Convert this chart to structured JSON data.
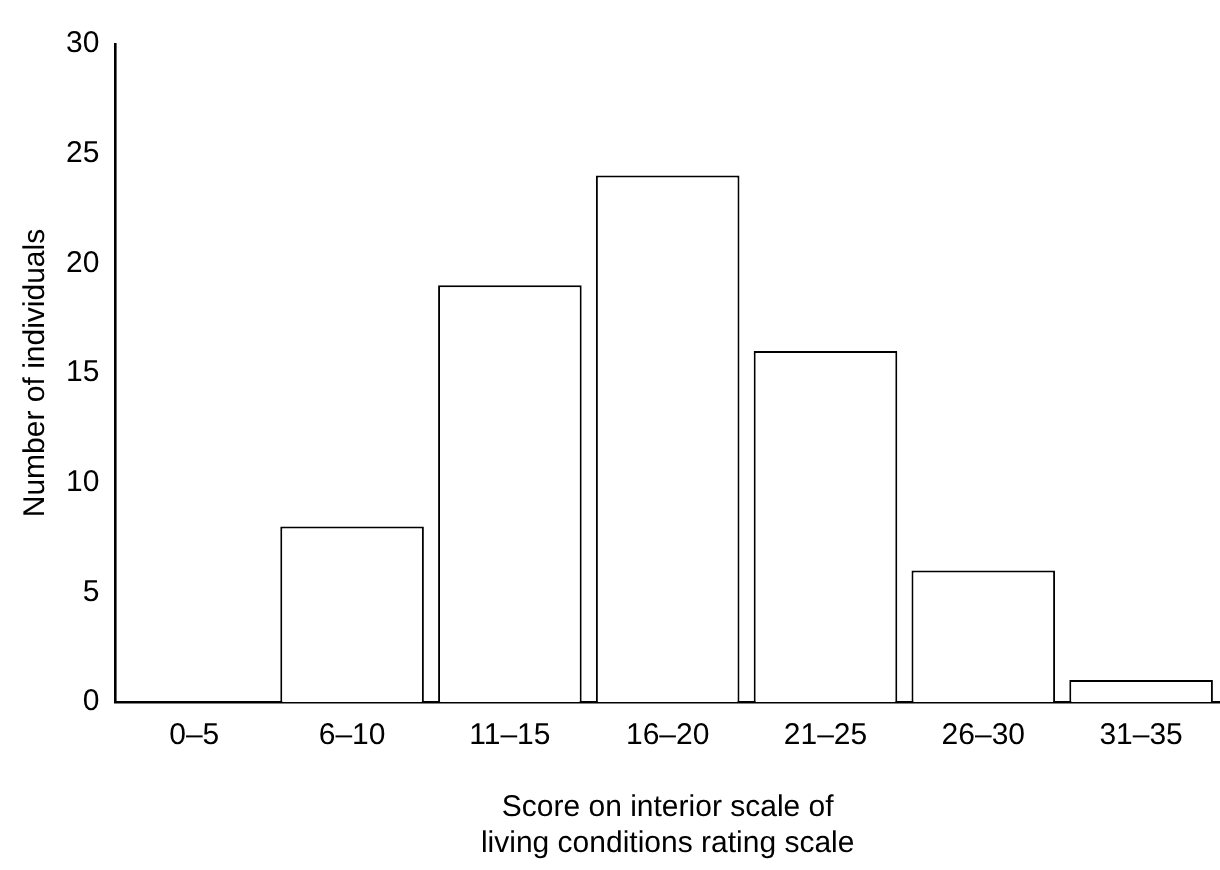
{
  "chart_data": {
    "type": "bar",
    "xlabel": "Score on interior scale of\nliving conditions rating scale",
    "ylabel": "Number of individuals",
    "categories": [
      "0–5",
      "6–10",
      "11–15",
      "16–20",
      "21–25",
      "26–30",
      "31–35"
    ],
    "values": [
      0,
      8,
      19,
      24,
      16,
      6,
      1
    ],
    "color": "#ffffff",
    "ylim": [
      0,
      30
    ],
    "yticks": [
      0,
      5,
      10,
      15,
      20,
      25,
      30
    ],
    "grid": false,
    "legend": false
  }
}
